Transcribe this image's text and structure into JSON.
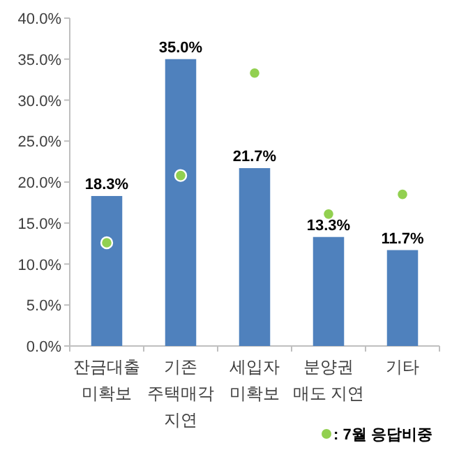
{
  "chart_data": {
    "type": "bar",
    "categories": [
      "잔금대출\n미확보",
      "기존\n주택매각\n지연",
      "세입자\n미확보",
      "분양권\n매도 지연",
      "기타"
    ],
    "series": [
      {
        "color": "#4f81bd",
        "values": [
          18.3,
          35.0,
          21.7,
          13.3,
          11.7
        ],
        "value_labels": [
          "18.3%",
          "35.0%",
          "21.7%",
          "13.3%",
          "11.7%"
        ]
      },
      {
        "type": "scatter",
        "name": ": 7월 응답비중",
        "color": "#92d050",
        "marker": "circle",
        "values": [
          12.6,
          20.8,
          33.3,
          16.1,
          18.5
        ]
      }
    ],
    "ylim": [
      0,
      40
    ],
    "yticks": [
      {
        "value": 0,
        "label": "0.0%"
      },
      {
        "value": 5,
        "label": "5.0%"
      },
      {
        "value": 10,
        "label": "10.0%"
      },
      {
        "value": 15,
        "label": "15.0%"
      },
      {
        "value": 20,
        "label": "20.0%"
      },
      {
        "value": 25,
        "label": "25.0%"
      },
      {
        "value": 30,
        "label": "30.0%"
      },
      {
        "value": 35,
        "label": "35.0%"
      },
      {
        "value": 40,
        "label": "40.0%"
      }
    ],
    "grid": false,
    "legend": "bottom right"
  }
}
